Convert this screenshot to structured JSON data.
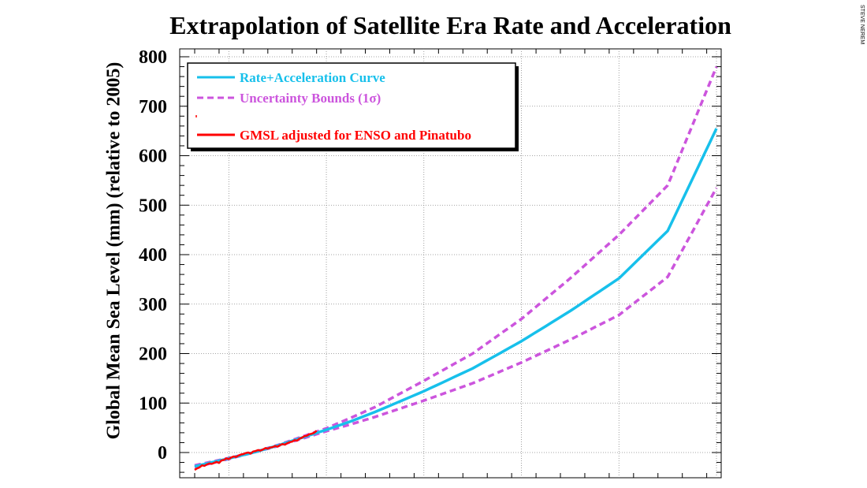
{
  "credit": "STEVE NEREM",
  "chart_data": {
    "type": "line",
    "title": "Extrapolation of Satellite Era Rate and Acceleration",
    "ylabel": "Global Mean Sea Level (mm) (relative to 2005)",
    "xlabel": "",
    "xlim": [
      1993,
      2100
    ],
    "ylim": [
      -50,
      800
    ],
    "yticks": [
      0,
      100,
      200,
      300,
      400,
      500,
      600,
      700,
      800
    ],
    "grid": true,
    "legend_position": "top-left",
    "series": [
      {
        "name": "Rate+Acceleration Curve",
        "color": "#17c0eb",
        "style": "solid",
        "x": [
          1993,
          2000,
          2005,
          2010,
          2015,
          2020,
          2025,
          2030,
          2040,
          2050,
          2060,
          2070,
          2080,
          2090,
          2100
        ],
        "y": [
          -28,
          -12,
          0,
          14,
          30,
          46,
          63,
          82,
          124,
          170,
          225,
          286,
          352,
          448,
          655
        ]
      },
      {
        "name": "Uncertainty Bounds (1σ)",
        "color": "#cc55dd",
        "style": "dashed",
        "x": [
          1993,
          2000,
          2005,
          2010,
          2015,
          2020,
          2025,
          2030,
          2040,
          2050,
          2060,
          2070,
          2080,
          2090,
          2100
        ],
        "y": [
          -26,
          -11,
          0,
          15,
          32,
          49,
          70,
          92,
          145,
          200,
          270,
          352,
          440,
          540,
          780
        ]
      },
      {
        "name": "",
        "color": "#cc55dd",
        "style": "dashed",
        "x": [
          1993,
          2000,
          2005,
          2010,
          2015,
          2020,
          2025,
          2030,
          2040,
          2050,
          2060,
          2070,
          2080,
          2090,
          2100
        ],
        "y": [
          -30,
          -13,
          0,
          13,
          28,
          43,
          57,
          72,
          105,
          140,
          182,
          228,
          278,
          355,
          535
        ]
      },
      {
        "name": "GMSL adjusted for ENSO and Pinatubo",
        "color": "#ff0000",
        "style": "solid",
        "x": [
          1993.0,
          1993.5,
          1994.0,
          1994.5,
          1995.0,
          1995.5,
          1996.0,
          1996.5,
          1997.0,
          1997.5,
          1998.0,
          1998.5,
          1999.0,
          1999.5,
          2000.0,
          2000.5,
          2001.0,
          2001.5,
          2002.0,
          2002.5,
          2003.0,
          2003.5,
          2004.0,
          2004.5,
          2005.0,
          2005.5,
          2006.0,
          2006.5,
          2007.0,
          2007.5,
          2008.0,
          2008.5,
          2009.0,
          2009.5,
          2010.0,
          2010.5,
          2011.0,
          2011.5,
          2012.0,
          2012.5,
          2013.0,
          2013.5,
          2014.0,
          2014.5,
          2015.0,
          2015.5,
          2016.0,
          2016.5,
          2017.0,
          2017.5,
          2018.0
        ],
        "y": [
          -35,
          -32,
          -30,
          -26,
          -27,
          -24,
          -22,
          -23,
          -21,
          -19,
          -21,
          -16,
          -15,
          -12,
          -13,
          -10,
          -8,
          -9,
          -6,
          -4,
          -3,
          -1,
          0,
          -2,
          2,
          3,
          5,
          4,
          6,
          9,
          8,
          10,
          11,
          13,
          12,
          15,
          17,
          16,
          19,
          21,
          22,
          25,
          24,
          28,
          30,
          33,
          34,
          37,
          38,
          40,
          44
        ]
      }
    ],
    "legend": [
      {
        "label": "Rate+Acceleration Curve",
        "color": "#17c0eb",
        "style": "solid"
      },
      {
        "label": "Uncertainty Bounds (1σ)",
        "color": "#cc55dd",
        "style": "dashed"
      },
      {
        "label": "GMSL adjusted for ENSO and Pinatubo",
        "color": "#ff0000",
        "style": "solid"
      }
    ]
  }
}
